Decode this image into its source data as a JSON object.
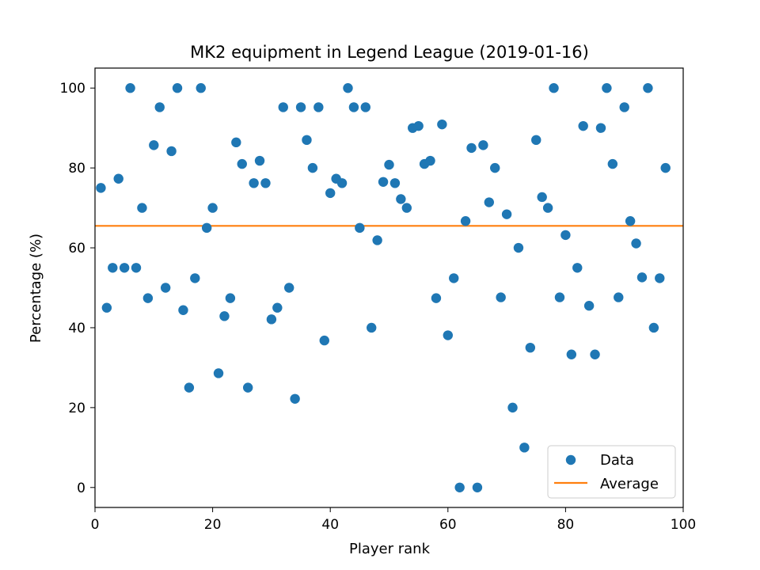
{
  "chart_data": {
    "type": "scatter",
    "title": "MK2 equipment in Legend League (2019-01-16)",
    "xlabel": "Player rank",
    "ylabel": "Percentage (%)",
    "xlim": [
      0,
      100
    ],
    "ylim": [
      -5,
      105
    ],
    "xticks": [
      0,
      20,
      40,
      60,
      80,
      100
    ],
    "yticks": [
      0,
      20,
      40,
      60,
      80,
      100
    ],
    "grid": false,
    "legend_position": "lower-right",
    "series": [
      {
        "name": "Data",
        "kind": "scatter",
        "color": "#1f77b4",
        "x": [
          1,
          2,
          3,
          4,
          5,
          6,
          7,
          8,
          9,
          10,
          11,
          12,
          13,
          14,
          15,
          16,
          17,
          18,
          19,
          20,
          21,
          22,
          23,
          24,
          25,
          26,
          27,
          28,
          29,
          30,
          31,
          32,
          33,
          34,
          35,
          36,
          37,
          38,
          39,
          40,
          41,
          42,
          43,
          44,
          45,
          46,
          47,
          48,
          49,
          50,
          51,
          52,
          53,
          54,
          55,
          56,
          57,
          58,
          59,
          60,
          61,
          62,
          63,
          64,
          65,
          66,
          67,
          68,
          69,
          70,
          71,
          72,
          73,
          74,
          75,
          76,
          77,
          78,
          79,
          80,
          81,
          82,
          83,
          84,
          85,
          86,
          87,
          88,
          89,
          90,
          91,
          92,
          93,
          94,
          95,
          96,
          97
        ],
        "y": [
          75,
          45,
          55,
          77.3,
          55,
          100,
          55,
          70,
          47.4,
          85.7,
          95.2,
          50,
          84.2,
          100,
          44.4,
          25,
          52.4,
          100,
          65,
          70,
          28.6,
          42.9,
          47.4,
          86.4,
          81,
          25,
          76.2,
          81.8,
          76.2,
          42.1,
          45,
          95.2,
          50,
          22.2,
          95.2,
          87,
          80,
          95.2,
          36.8,
          73.7,
          77.3,
          76.2,
          100,
          95.2,
          65,
          95.2,
          40,
          61.9,
          76.5,
          80.8,
          76.2,
          72.2,
          70,
          90,
          90.5,
          81,
          81.8,
          47.4,
          90.9,
          38.1,
          52.4,
          0,
          66.7,
          85,
          0,
          85.7,
          71.4,
          80,
          47.6,
          68.4,
          20,
          60,
          10,
          35,
          87,
          72.7,
          70,
          100,
          47.6,
          63.2,
          33.3,
          55,
          90.5,
          45.5,
          33.3,
          90,
          100,
          81,
          47.6,
          95.2,
          66.7,
          61.1,
          52.6,
          100,
          40,
          52.4,
          80
        ]
      },
      {
        "name": "Average",
        "kind": "hline",
        "color": "#ff7f0e",
        "value": 65.5
      }
    ]
  }
}
